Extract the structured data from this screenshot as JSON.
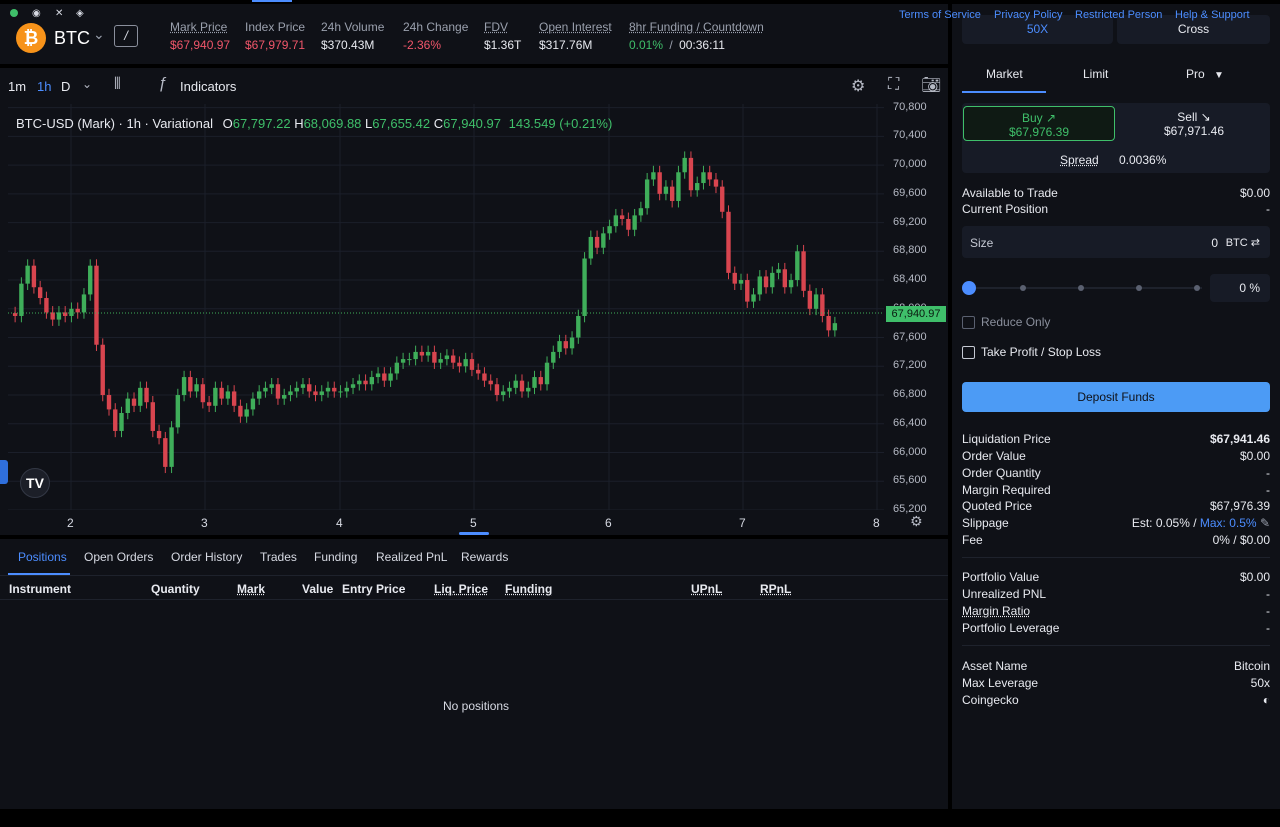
{
  "market": {
    "icon": "₿",
    "symbol": "BTC",
    "slash_label": "/",
    "stats": [
      {
        "label": "Mark Price",
        "value": "$67,940.97",
        "tone": "red",
        "underline": true
      },
      {
        "label": "Index Price",
        "value": "$67,979.71",
        "tone": "red",
        "underline": false
      },
      {
        "label": "24h Volume",
        "value": "$370.43M",
        "tone": "neutral",
        "underline": false
      },
      {
        "label": "24h Change",
        "value": "-2.36%",
        "tone": "red",
        "underline": false
      },
      {
        "label": "FDV",
        "value": "$1.36T",
        "tone": "neutral",
        "underline": true
      },
      {
        "label": "Open Interest",
        "value": "$317.76M",
        "tone": "neutral",
        "underline": true
      }
    ],
    "funding": {
      "label": "8hr Funding / Countdown",
      "rate": "0.01%",
      "separator": "/",
      "countdown": "00:36:11"
    }
  },
  "chart_toolbar": {
    "timeframes": [
      "1m",
      "1h",
      "D"
    ],
    "active_timeframe": "1h",
    "indicators_label": "Indicators"
  },
  "chart_legend": {
    "title": "BTC-USD (Mark) · 1h · Variational",
    "o_key": "O",
    "o_val": "67,797.22",
    "h_key": "H",
    "h_val": "68,069.88",
    "l_key": "L",
    "l_val": "67,655.42",
    "c_key": "C",
    "c_val": "67,940.97",
    "change": "143.549 (+0.21%)"
  },
  "chart_data": {
    "type": "candlestick",
    "title": "BTC-USD (Mark) · 1h · Variational",
    "x_ticks": [
      "2",
      "3",
      "4",
      "5",
      "6",
      "7",
      "8"
    ],
    "y_ticks": [
      "70,800",
      "70,400",
      "70,000",
      "69,600",
      "69,200",
      "68,800",
      "68,400",
      "68,000",
      "67,600",
      "67,200",
      "66,800",
      "66,400",
      "66,000",
      "65,600",
      "65,200"
    ],
    "ylim": [
      65200,
      70850
    ],
    "last_price": "67,940.97",
    "close": [
      67900,
      68350,
      68600,
      68300,
      68150,
      67950,
      67850,
      67950,
      67900,
      68000,
      67950,
      68200,
      68600,
      67500,
      66800,
      66600,
      66300,
      66550,
      66750,
      66650,
      66900,
      66700,
      66300,
      66200,
      65800,
      66350,
      66800,
      67050,
      66850,
      66950,
      66700,
      66650,
      66900,
      66750,
      66850,
      66650,
      66500,
      66600,
      66750,
      66850,
      66900,
      66950,
      66750,
      66800,
      66850,
      66900,
      66950,
      66850,
      66800,
      66850,
      66900,
      66850,
      66850,
      66900,
      66950,
      67000,
      66950,
      67050,
      67100,
      67000,
      67100,
      67250,
      67300,
      67300,
      67400,
      67350,
      67400,
      67250,
      67300,
      67350,
      67250,
      67200,
      67300,
      67150,
      67100,
      67000,
      66950,
      66800,
      66850,
      66900,
      67000,
      66850,
      66900,
      67050,
      66950,
      67250,
      67400,
      67550,
      67450,
      67600,
      67900,
      68700,
      69000,
      68850,
      69050,
      69150,
      69300,
      69250,
      69100,
      69300,
      69400,
      69800,
      69900,
      69600,
      69700,
      69500,
      69900,
      70100,
      69650,
      69750,
      69900,
      69800,
      69700,
      69350,
      68500,
      68350,
      68400,
      68100,
      68200,
      68450,
      68300,
      68500,
      68550,
      68300,
      68400,
      68800,
      68250,
      68000,
      68200,
      67900,
      67700,
      67800
    ],
    "low_ratio": 0.999,
    "high_ratio": 1.001
  },
  "chart_dates_current": "5",
  "positions_tabs": [
    "Positions",
    "Open Orders",
    "Order History",
    "Trades",
    "Funding",
    "Realized PnL",
    "Rewards"
  ],
  "positions_columns": [
    {
      "label": "Instrument",
      "underline": false
    },
    {
      "label": "Quantity",
      "underline": false
    },
    {
      "label": "Mark",
      "underline": true
    },
    {
      "label": "Value",
      "underline": false
    },
    {
      "label": "Entry Price",
      "underline": false
    },
    {
      "label": "Liq. Price",
      "underline": true
    },
    {
      "label": "Funding",
      "underline": true
    },
    {
      "label": "UPnL",
      "underline": true
    },
    {
      "label": "RPnL",
      "underline": true
    }
  ],
  "positions_empty": "No positions",
  "order": {
    "leverage_label": "50X",
    "margin_mode_label": "Cross",
    "tabs": [
      "Market",
      "Limit",
      "Pro"
    ],
    "buy_label": "Buy ↗",
    "buy_price": "$67,976.39",
    "sell_label": "Sell ↘",
    "sell_price": "$67,971.46",
    "spread_label": "Spread",
    "spread_value": "0.0036%",
    "available_label": "Available to Trade",
    "available_value": "$0.00",
    "current_position_label": "Current Position",
    "current_position_value": "-",
    "size_label": "Size",
    "size_value": "0",
    "size_unit": "BTC ⇄",
    "slider_pct": 0,
    "pct_display": "0 %",
    "reduce_only_label": "Reduce Only",
    "tpsl_label": "Take Profit / Stop Loss",
    "deposit_label": "Deposit Funds",
    "summary": [
      {
        "label": "Liquidation Price",
        "value": "$67,941.46",
        "bold": true
      },
      {
        "label": "Order Value",
        "value": "$0.00"
      },
      {
        "label": "Order Quantity",
        "value": "-"
      },
      {
        "label": "Margin Required",
        "value": "-"
      },
      {
        "label": "Quoted Price",
        "value": "$67,976.39"
      }
    ],
    "slippage_label": "Slippage",
    "slippage_est": "Est: 0.05% /",
    "slippage_max": "Max: 0.5%",
    "fee_label": "Fee",
    "fee_value": "0% / $0.00",
    "portfolio": [
      {
        "label": "Portfolio Value",
        "value": "$0.00",
        "underline": false
      },
      {
        "label": "Unrealized PNL",
        "value": "-",
        "underline": false
      },
      {
        "label": "Margin Ratio",
        "value": "-",
        "underline": true
      },
      {
        "label": "Portfolio Leverage",
        "value": "-",
        "underline": false
      }
    ],
    "asset": [
      {
        "label": "Asset Name",
        "value": "Bitcoin"
      },
      {
        "label": "Max Leverage",
        "value": "50x"
      },
      {
        "label": "Coingecko",
        "value": "◐"
      }
    ]
  },
  "footer": {
    "links": [
      "Terms of Service",
      "Privacy Policy",
      "Restricted Person",
      "Help & Support"
    ]
  }
}
